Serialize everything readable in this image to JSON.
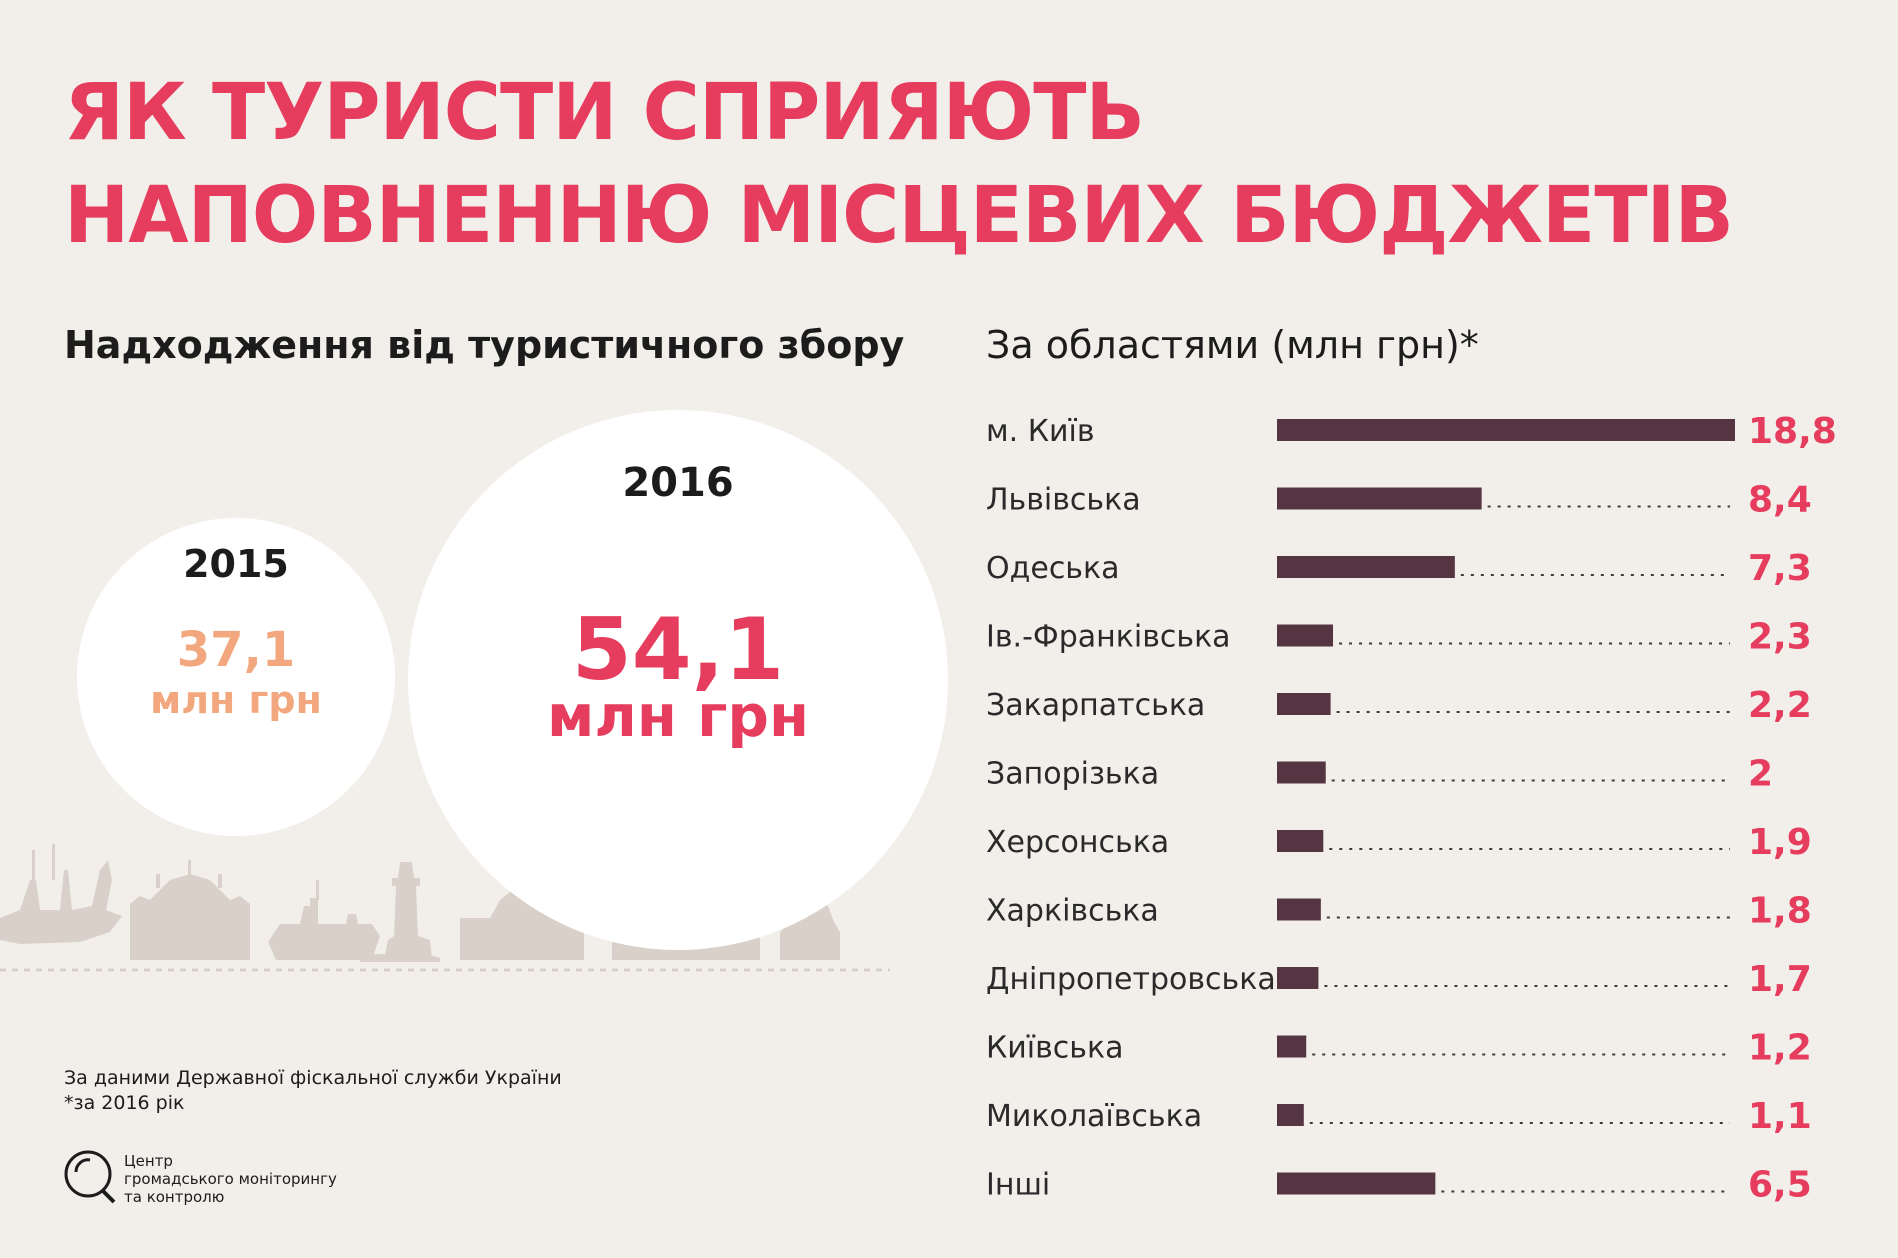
{
  "title": {
    "line1": "ЯК ТУРИСТИ СПРИЯЮТЬ",
    "line2": "НАПОВНЕННЮ МІСЦЕВИХ БЮДЖЕТІВ"
  },
  "left_panel": {
    "heading": "Надходження від туристичного збору",
    "circle_2015": {
      "year": "2015",
      "value": "37,1",
      "unit": "млн грн"
    },
    "circle_2016": {
      "year": "2016",
      "value": "54,1",
      "unit": "млн грн"
    }
  },
  "footer": {
    "source": "За даними Державної фіскальної служби України",
    "note": "*за 2016 рік",
    "org_line1": "Центр",
    "org_line2": "громадського моніторингу",
    "org_line3": "та контролю"
  },
  "colors": {
    "accent": "#e63c5d",
    "accent_light": "#f3a77e",
    "bar": "#553542",
    "background": "#f2efeb",
    "skyline": "#d9d1c9"
  },
  "chart_data": [
    {
      "type": "bar",
      "orientation": "horizontal",
      "title": "За областями (млн грн)*",
      "categories": [
        "м. Київ",
        "Львівська",
        "Одеська",
        "Ів.-Франківська",
        "Закарпатська",
        "Запорізька",
        "Херсонська",
        "Харківська",
        "Дніпропетровська",
        "Київська",
        "Миколаївська",
        "Інші"
      ],
      "values": [
        18.8,
        8.4,
        7.3,
        2.3,
        2.2,
        2,
        1.9,
        1.8,
        1.7,
        1.2,
        1.1,
        6.5
      ],
      "value_labels": [
        "18,8",
        "8,4",
        "7,3",
        "2,3",
        "2,2",
        "2",
        "1,9",
        "1,8",
        "1,7",
        "1,2",
        "1,1",
        "6,5"
      ],
      "xlim": [
        0,
        18.8
      ],
      "grid": false,
      "legend": "none"
    },
    {
      "type": "bubble",
      "title": "Надходження від туристичного збору",
      "categories": [
        "2015",
        "2016"
      ],
      "values": [
        37.1,
        54.1
      ],
      "unit": "млн грн"
    }
  ]
}
